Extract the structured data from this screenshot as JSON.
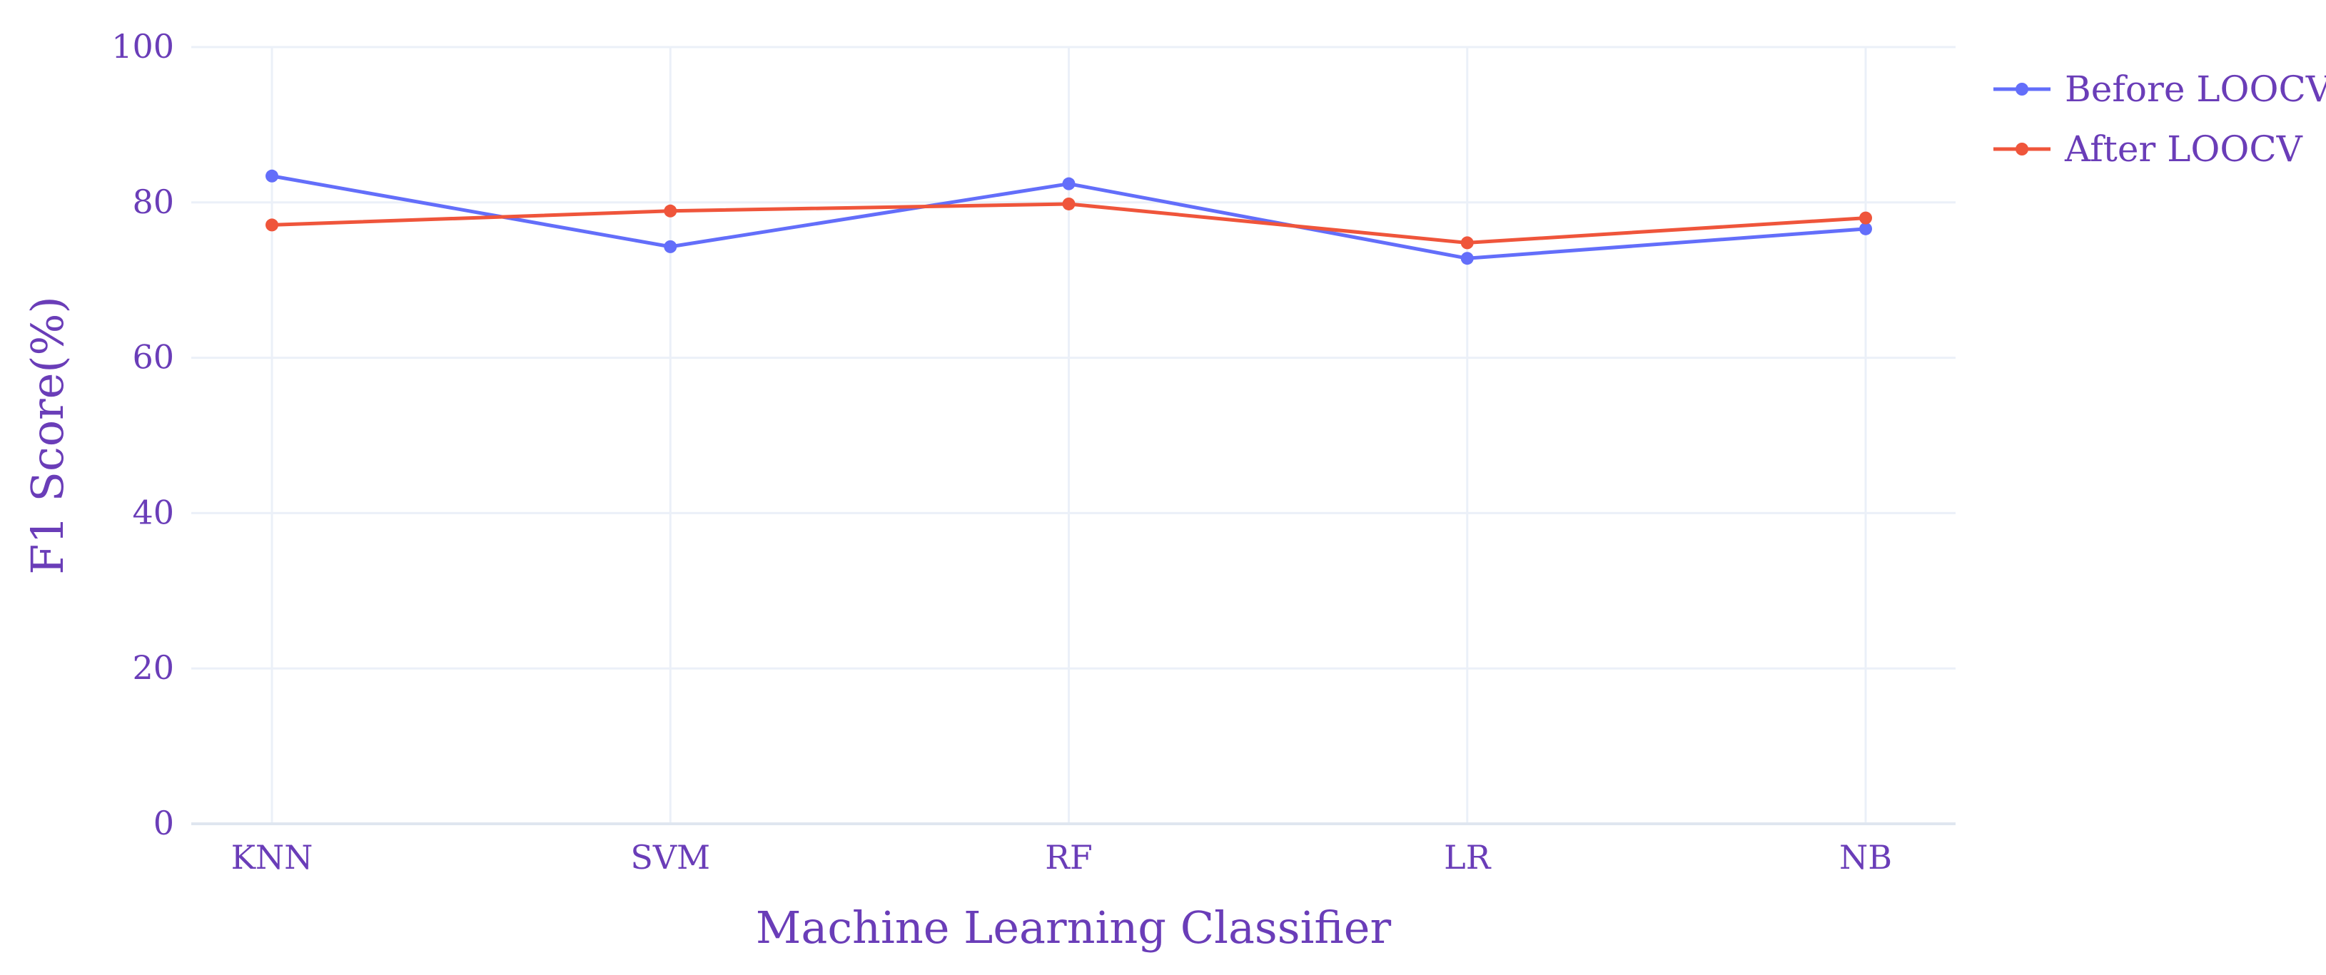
{
  "chart_data": {
    "type": "line",
    "categories": [
      "KNN",
      "SVM",
      "RF",
      "LR",
      "NB"
    ],
    "series": [
      {
        "name": "Before LOOCV",
        "values": [
          83.4,
          74.3,
          82.4,
          72.8,
          76.6
        ],
        "color": "#636efa"
      },
      {
        "name": "After LOOCV",
        "values": [
          77.1,
          78.9,
          79.8,
          74.8,
          78.0
        ],
        "color": "#ef553b"
      }
    ],
    "xlabel": "Machine Learning Classifier",
    "ylabel": "F1 Score(%)",
    "ylim": [
      0,
      100
    ],
    "yticks": [
      0,
      20,
      40,
      60,
      80,
      100
    ],
    "grid": true,
    "legend_position": "top-right",
    "text_color": "#6a3db8",
    "grid_color": "#ebf0f8"
  }
}
